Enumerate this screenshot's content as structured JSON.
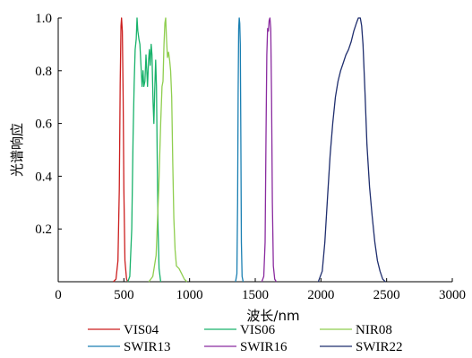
{
  "chart_data": {
    "type": "line",
    "xlabel": "波长/nm",
    "ylabel": "光谱响应",
    "xlim": [
      0,
      3000
    ],
    "ylim": [
      0,
      1.0
    ],
    "x_ticks": [
      0,
      500,
      1000,
      1500,
      2000,
      2500,
      3000
    ],
    "y_ticks": [
      0.2,
      0.4,
      0.6,
      0.8,
      1.0
    ],
    "x_tick_labels": [
      "0",
      "500",
      "1000",
      "1500",
      "2000",
      "2500",
      "3000"
    ],
    "y_tick_labels": [
      "0.2",
      "0.4",
      "0.6",
      "0.8",
      "1.0"
    ],
    "grid": false,
    "legend_position": "bottom",
    "series": [
      {
        "name": "VIS04",
        "color": "#cc1f1f",
        "points": [
          [
            420,
            0
          ],
          [
            440,
            0.01
          ],
          [
            455,
            0.08
          ],
          [
            465,
            0.35
          ],
          [
            472,
            0.75
          ],
          [
            478,
            0.97
          ],
          [
            482,
            1.0
          ],
          [
            488,
            0.95
          ],
          [
            494,
            0.7
          ],
          [
            500,
            0.35
          ],
          [
            508,
            0.08
          ],
          [
            520,
            0.01
          ],
          [
            530,
            0
          ]
        ]
      },
      {
        "name": "VIS06",
        "color": "#19b26b",
        "points": [
          [
            530,
            0
          ],
          [
            545,
            0.02
          ],
          [
            560,
            0.2
          ],
          [
            570,
            0.55
          ],
          [
            578,
            0.75
          ],
          [
            586,
            0.88
          ],
          [
            594,
            0.92
          ],
          [
            600,
            1.0
          ],
          [
            606,
            0.95
          ],
          [
            614,
            0.92
          ],
          [
            622,
            0.9
          ],
          [
            630,
            0.82
          ],
          [
            638,
            0.74
          ],
          [
            646,
            0.8
          ],
          [
            652,
            0.74
          ],
          [
            660,
            0.76
          ],
          [
            668,
            0.86
          ],
          [
            674,
            0.8
          ],
          [
            680,
            0.74
          ],
          [
            688,
            0.84
          ],
          [
            694,
            0.88
          ],
          [
            700,
            0.82
          ],
          [
            708,
            0.9
          ],
          [
            714,
            0.86
          ],
          [
            722,
            0.68
          ],
          [
            728,
            0.6
          ],
          [
            734,
            0.72
          ],
          [
            742,
            0.84
          ],
          [
            748,
            0.74
          ],
          [
            754,
            0.45
          ],
          [
            760,
            0.2
          ],
          [
            768,
            0.05
          ],
          [
            780,
            0
          ]
        ]
      },
      {
        "name": "NIR08",
        "color": "#8fce4f",
        "points": [
          [
            690,
            0
          ],
          [
            720,
            0.02
          ],
          [
            745,
            0.1
          ],
          [
            765,
            0.35
          ],
          [
            780,
            0.6
          ],
          [
            790,
            0.74
          ],
          [
            798,
            0.76
          ],
          [
            805,
            0.9
          ],
          [
            812,
            0.98
          ],
          [
            818,
            1.0
          ],
          [
            824,
            0.92
          ],
          [
            832,
            0.85
          ],
          [
            840,
            0.87
          ],
          [
            848,
            0.84
          ],
          [
            856,
            0.8
          ],
          [
            864,
            0.7
          ],
          [
            872,
            0.45
          ],
          [
            880,
            0.24
          ],
          [
            890,
            0.12
          ],
          [
            900,
            0.06
          ],
          [
            920,
            0.05
          ],
          [
            940,
            0.03
          ],
          [
            960,
            0.01
          ],
          [
            980,
            0
          ]
        ]
      },
      {
        "name": "SWIR13",
        "color": "#1a7fb2",
        "points": [
          [
            1350,
            0
          ],
          [
            1360,
            0.03
          ],
          [
            1366,
            0.3
          ],
          [
            1370,
            0.72
          ],
          [
            1374,
            0.96
          ],
          [
            1378,
            1.0
          ],
          [
            1382,
            0.98
          ],
          [
            1386,
            0.9
          ],
          [
            1390,
            0.55
          ],
          [
            1394,
            0.15
          ],
          [
            1400,
            0.02
          ],
          [
            1408,
            0
          ]
        ]
      },
      {
        "name": "SWIR16",
        "color": "#8a2b9f",
        "points": [
          [
            1550,
            0
          ],
          [
            1565,
            0.02
          ],
          [
            1575,
            0.15
          ],
          [
            1582,
            0.55
          ],
          [
            1588,
            0.86
          ],
          [
            1594,
            0.96
          ],
          [
            1600,
            0.95
          ],
          [
            1606,
            0.99
          ],
          [
            1612,
            1.0
          ],
          [
            1618,
            0.96
          ],
          [
            1624,
            0.7
          ],
          [
            1630,
            0.3
          ],
          [
            1638,
            0.06
          ],
          [
            1648,
            0.01
          ],
          [
            1660,
            0
          ]
        ]
      },
      {
        "name": "SWIR22",
        "color": "#1f2e6e",
        "points": [
          [
            1980,
            0
          ],
          [
            2010,
            0.04
          ],
          [
            2030,
            0.15
          ],
          [
            2050,
            0.32
          ],
          [
            2070,
            0.48
          ],
          [
            2090,
            0.6
          ],
          [
            2110,
            0.7
          ],
          [
            2130,
            0.76
          ],
          [
            2150,
            0.8
          ],
          [
            2170,
            0.83
          ],
          [
            2190,
            0.86
          ],
          [
            2210,
            0.88
          ],
          [
            2230,
            0.91
          ],
          [
            2250,
            0.95
          ],
          [
            2270,
            0.98
          ],
          [
            2285,
            1.0
          ],
          [
            2300,
            1.0
          ],
          [
            2310,
            0.97
          ],
          [
            2320,
            0.9
          ],
          [
            2335,
            0.72
          ],
          [
            2350,
            0.52
          ],
          [
            2370,
            0.36
          ],
          [
            2390,
            0.25
          ],
          [
            2410,
            0.15
          ],
          [
            2430,
            0.08
          ],
          [
            2450,
            0.04
          ],
          [
            2470,
            0.01
          ],
          [
            2490,
            0
          ]
        ]
      }
    ]
  }
}
